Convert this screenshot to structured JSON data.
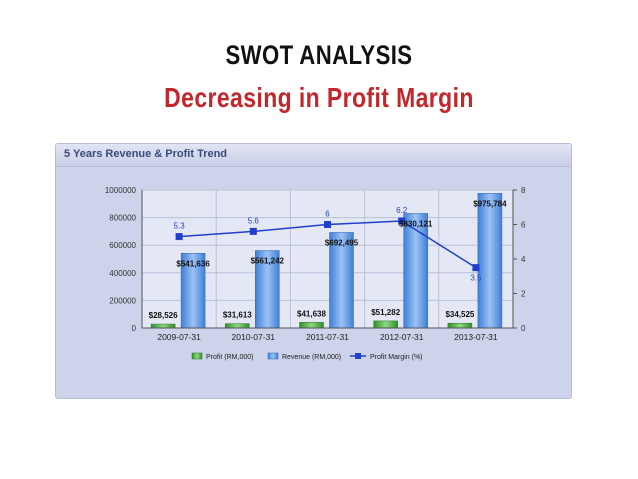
{
  "slide": {
    "title": "SWOT ANALYSIS",
    "subtitle": "Decreasing in Profit Margin"
  },
  "panel": {
    "title": "5 Years Revenue & Profit Trend"
  },
  "colors": {
    "revenue": "#6b9ee8",
    "profit": "#4caf3f",
    "margin": "#1f3fcc",
    "title_accent": "#c3262b"
  },
  "chart_data": {
    "type": "bar",
    "categories": [
      "2009-07-31",
      "2010-07-31",
      "2011-07-31",
      "2012-07-31",
      "2013-07-31"
    ],
    "series": [
      {
        "name": "Profit (RM,000)",
        "values": [
          28526,
          31613,
          41638,
          51282,
          34525
        ],
        "labels": [
          "$28,526",
          "$31,613",
          "$41,638",
          "$51,282",
          "$34,525"
        ],
        "axis": "left"
      },
      {
        "name": "Revenue (RM,000)",
        "values": [
          541636,
          561242,
          692495,
          830121,
          975784
        ],
        "labels": [
          "$541,636",
          "$561,242",
          "$692,495",
          "$830,121",
          "$975,784"
        ],
        "axis": "left"
      },
      {
        "name": "Profit Margin (%)",
        "type": "line",
        "values": [
          5.3,
          5.6,
          6,
          6.2,
          3.5
        ],
        "labels": [
          "5.3",
          "5.6",
          "6",
          "6.2",
          "3.5"
        ],
        "axis": "right"
      }
    ],
    "ylim": [
      0,
      1000000
    ],
    "yticks": [
      "0",
      "200000",
      "400000",
      "600000",
      "800000",
      "1000000"
    ],
    "y2lim": [
      0,
      8
    ],
    "y2ticks": [
      "0",
      "2",
      "4",
      "6",
      "8"
    ],
    "grid": true,
    "legend": "bottom"
  }
}
